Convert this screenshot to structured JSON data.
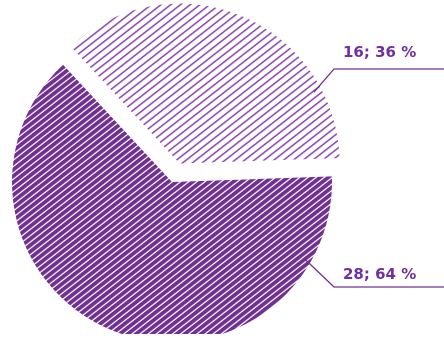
{
  "chart_data": {
    "type": "pie",
    "exploded": true,
    "fill_pattern": "diagonal-stripes",
    "colors": {
      "dark": "#70308f",
      "light": "#8e4fb0",
      "label": "#7030a0",
      "background": "#ffffff"
    },
    "slices": [
      {
        "value": 16,
        "percent": "36 %",
        "label": "16; 36 %",
        "shade": "light"
      },
      {
        "value": 28,
        "percent": "64 %",
        "label": "28; 64 %",
        "shade": "dark"
      }
    ]
  }
}
